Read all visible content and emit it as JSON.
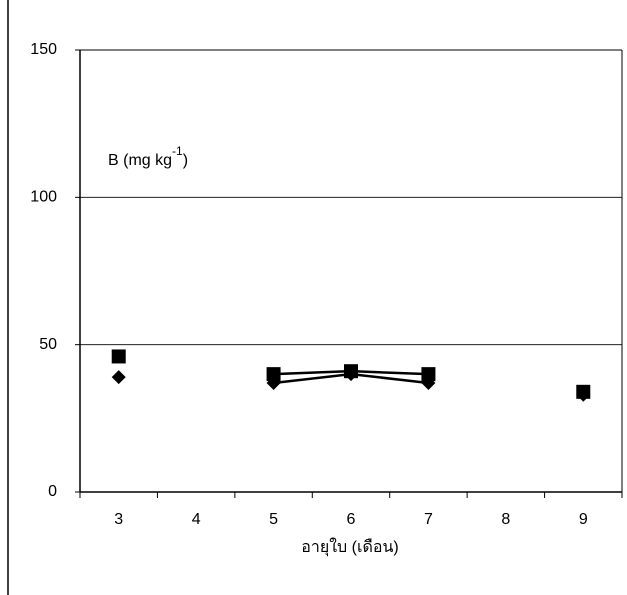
{
  "chart_data": {
    "type": "line",
    "annotation": [
      "B (mg kg",
      "-1",
      ")"
    ],
    "x_label": "อายุใบ (เดือน)",
    "categories": [
      "3",
      "4",
      "5",
      "6",
      "7",
      "8",
      "9"
    ],
    "series": [
      {
        "color": "#000000",
        "marker": "diamond",
        "values": [
          39,
          null,
          37,
          40,
          37,
          null,
          33
        ]
      },
      {
        "color": "#000000",
        "marker": "square",
        "values": [
          46,
          null,
          40,
          41,
          40,
          null,
          34
        ]
      }
    ],
    "ylim": [
      0,
      150
    ],
    "yticks": [
      0,
      50,
      100,
      150
    ],
    "grid": true
  }
}
